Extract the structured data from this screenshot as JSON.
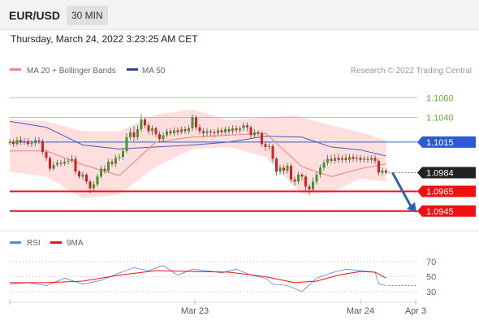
{
  "header": {
    "symbol": "EUR/USD",
    "timeframe": "30 MIN"
  },
  "datetime": "Thursday, March 24, 2022 3:23:25 AM CET",
  "legend": {
    "ma20": "MA 20 + Bollinger Bands",
    "ma50": "MA 50"
  },
  "copyright": "Research © 2022 Trading Central",
  "colors": {
    "bollinger": "#ffd6d6",
    "ma20": "#e8837e",
    "ma50": "#4a5fb5",
    "candle_up": "#3a9a2e",
    "candle_down": "#d81f1f",
    "resistance": "#8cc56a",
    "pivot": "#2d5bd8",
    "support": "#ee1111",
    "current": "#222222",
    "arrow": "#2a66ad",
    "rsi": "#5b86e5",
    "rsi_ma": "#ee1111"
  },
  "rsi_legend": {
    "rsi": "RSI",
    "ma": "9MA"
  },
  "chart_data": [
    {
      "type": "candlestick",
      "ylim": [
        1.093,
        1.108
      ],
      "levels": [
        {
          "label": "1.1060",
          "value": 1.106,
          "kind": "resistance"
        },
        {
          "label": "1.1040",
          "value": 1.104,
          "kind": "resistance"
        },
        {
          "label": "1.1015",
          "value": 1.1015,
          "kind": "pivot"
        },
        {
          "label": "1.0984",
          "value": 1.0984,
          "kind": "current"
        },
        {
          "label": "1.0965",
          "value": 1.0965,
          "kind": "support"
        },
        {
          "label": "1.0945",
          "value": 1.0945,
          "kind": "support"
        }
      ],
      "forecast": {
        "from": 1.0984,
        "to": 1.0945
      },
      "x_ticks": [
        "Mar 23",
        "Mar 24",
        "Apr 3"
      ],
      "candles": [
        [
          1.1014,
          1.1015,
          1.1018,
          1.1012
        ],
        [
          1.1015,
          1.1013,
          1.1018,
          1.101
        ],
        [
          1.1013,
          1.1017,
          1.102,
          1.1011
        ],
        [
          1.1017,
          1.1015,
          1.1021,
          1.1012
        ],
        [
          1.1015,
          1.1016,
          1.1019,
          1.1012
        ],
        [
          1.1016,
          1.1013,
          1.1019,
          1.101
        ],
        [
          1.1013,
          1.1014,
          1.1017,
          1.101
        ],
        [
          1.1014,
          1.1017,
          1.102,
          1.1011
        ],
        [
          1.1017,
          1.1016,
          1.102,
          1.1013
        ],
        [
          1.1016,
          1.1005,
          1.1018,
          1.1002
        ],
        [
          1.1005,
          1.0999,
          1.1007,
          1.0996
        ],
        [
          1.0999,
          1.0988,
          1.1001,
          1.0985
        ],
        [
          1.0988,
          1.0992,
          1.0995,
          1.0986
        ],
        [
          1.0992,
          1.0994,
          1.0997,
          1.099
        ],
        [
          1.0994,
          1.0993,
          1.0997,
          1.099
        ],
        [
          1.0993,
          1.0995,
          1.0998,
          1.0991
        ],
        [
          1.0995,
          1.0996,
          1.0999,
          1.0992
        ],
        [
          1.0996,
          1.0998,
          1.1002,
          1.0994
        ],
        [
          1.0998,
          1.0985,
          1.1001,
          1.0982
        ],
        [
          1.0985,
          1.098,
          1.0987,
          1.0978
        ],
        [
          1.098,
          1.0982,
          1.0985,
          1.0977
        ],
        [
          1.0982,
          1.0975,
          1.0984,
          1.0972
        ],
        [
          1.0975,
          1.0968,
          1.0977,
          1.0963
        ],
        [
          1.0968,
          1.0972,
          1.0975,
          1.0965
        ],
        [
          1.0972,
          1.098,
          1.0983,
          1.097
        ],
        [
          1.098,
          1.0988,
          1.0991,
          1.0978
        ],
        [
          1.0988,
          1.0986,
          1.0992,
          1.0983
        ],
        [
          1.0986,
          1.0995,
          1.0998,
          1.0984
        ],
        [
          1.0995,
          1.0993,
          1.0998,
          1.099
        ],
        [
          1.0993,
          1.0999,
          1.1002,
          1.099
        ],
        [
          1.0999,
          1.1,
          1.1003,
          1.0996
        ],
        [
          1.1,
          1.1006,
          1.1009,
          1.0997
        ],
        [
          1.1006,
          1.102,
          1.1024,
          1.1004
        ],
        [
          1.102,
          1.1025,
          1.1029,
          1.1017
        ],
        [
          1.1025,
          1.102,
          1.1031,
          1.1016
        ],
        [
          1.102,
          1.1028,
          1.1032,
          1.1017
        ],
        [
          1.1028,
          1.1038,
          1.1043,
          1.1025
        ],
        [
          1.1038,
          1.1032,
          1.104,
          1.1029
        ],
        [
          1.1032,
          1.1026,
          1.1035,
          1.1023
        ],
        [
          1.1026,
          1.1029,
          1.1032,
          1.1022
        ],
        [
          1.1029,
          1.1023,
          1.1031,
          1.102
        ],
        [
          1.1023,
          1.1018,
          1.1026,
          1.1015
        ],
        [
          1.1018,
          1.1022,
          1.1025,
          1.1015
        ],
        [
          1.1022,
          1.1026,
          1.1029,
          1.1019
        ],
        [
          1.1026,
          1.1024,
          1.1029,
          1.1021
        ],
        [
          1.1024,
          1.1027,
          1.103,
          1.1021
        ],
        [
          1.1027,
          1.1025,
          1.103,
          1.1022
        ],
        [
          1.1025,
          1.1028,
          1.1031,
          1.1023
        ],
        [
          1.1028,
          1.1026,
          1.1031,
          1.1023
        ],
        [
          1.1026,
          1.1029,
          1.1032,
          1.1023
        ],
        [
          1.1029,
          1.104,
          1.1043,
          1.1026
        ],
        [
          1.104,
          1.103,
          1.1042,
          1.1027
        ],
        [
          1.103,
          1.1026,
          1.1033,
          1.1023
        ],
        [
          1.1026,
          1.1024,
          1.1029,
          1.102
        ],
        [
          1.1024,
          1.1026,
          1.1029,
          1.1021
        ],
        [
          1.1026,
          1.1025,
          1.1028,
          1.1021
        ],
        [
          1.1025,
          1.1024,
          1.1028,
          1.102
        ],
        [
          1.1024,
          1.1027,
          1.103,
          1.1021
        ],
        [
          1.1027,
          1.1025,
          1.103,
          1.1022
        ],
        [
          1.1025,
          1.1028,
          1.1031,
          1.1022
        ],
        [
          1.1028,
          1.1026,
          1.1031,
          1.1023
        ],
        [
          1.1026,
          1.1029,
          1.1032,
          1.1023
        ],
        [
          1.1029,
          1.1027,
          1.1032,
          1.1024
        ],
        [
          1.1027,
          1.1029,
          1.1031,
          1.1024
        ],
        [
          1.1029,
          1.1032,
          1.1035,
          1.1026
        ],
        [
          1.1032,
          1.103,
          1.1035,
          1.1026
        ],
        [
          1.103,
          1.1022,
          1.1032,
          1.1019
        ],
        [
          1.1022,
          1.1025,
          1.1028,
          1.1019
        ],
        [
          1.1025,
          1.1024,
          1.1027,
          1.1021
        ],
        [
          1.1024,
          1.1013,
          1.1026,
          1.101
        ],
        [
          1.1013,
          1.101,
          1.1016,
          1.1006
        ],
        [
          1.101,
          1.1011,
          1.1014,
          1.1007
        ],
        [
          1.1011,
          1.0998,
          1.1013,
          1.0994
        ],
        [
          1.0998,
          1.0985,
          1.1,
          1.0981
        ],
        [
          1.0985,
          1.0989,
          1.0992,
          1.0982
        ],
        [
          1.0989,
          1.0986,
          1.0992,
          1.0982
        ],
        [
          1.0986,
          1.0991,
          1.0994,
          1.0983
        ],
        [
          1.0991,
          1.0977,
          1.0993,
          1.0974
        ],
        [
          1.0977,
          1.0975,
          1.098,
          1.0971
        ],
        [
          1.0975,
          1.0982,
          1.0985,
          1.0972
        ],
        [
          1.0982,
          1.098,
          1.0984,
          1.0976
        ],
        [
          1.098,
          1.097,
          1.0982,
          1.0966
        ],
        [
          1.097,
          1.0967,
          1.0973,
          1.0961
        ],
        [
          1.0967,
          1.0975,
          1.0979,
          1.0965
        ],
        [
          1.0975,
          1.0982,
          1.0985,
          1.0972
        ],
        [
          1.0982,
          1.0989,
          1.0992,
          1.0979
        ],
        [
          1.0989,
          1.0994,
          1.0997,
          1.0986
        ],
        [
          1.0994,
          1.0998,
          1.1002,
          1.0991
        ],
        [
          1.0998,
          1.0996,
          1.1002,
          1.0993
        ],
        [
          1.0996,
          1.0999,
          1.1003,
          1.0993
        ],
        [
          1.0999,
          1.0997,
          1.1003,
          1.0994
        ],
        [
          1.0997,
          1.0999,
          1.1002,
          1.0994
        ],
        [
          1.0999,
          1.0997,
          1.1003,
          1.0994
        ],
        [
          1.0997,
          1.1,
          1.1003,
          1.0994
        ],
        [
          1.1,
          1.0998,
          1.1003,
          1.0995
        ],
        [
          1.0998,
          1.0999,
          1.1002,
          1.0995
        ],
        [
          1.0999,
          1.0997,
          1.1002,
          1.0994
        ],
        [
          1.0997,
          1.0998,
          1.1001,
          1.0994
        ],
        [
          1.0998,
          1.0997,
          1.1001,
          1.0994
        ],
        [
          1.0997,
          1.0999,
          1.1002,
          1.0994
        ],
        [
          1.0999,
          1.0996,
          1.1002,
          1.0993
        ],
        [
          1.0996,
          1.0984,
          1.0998,
          1.0981
        ],
        [
          1.0984,
          1.0986,
          1.0989,
          1.0981
        ],
        [
          1.0986,
          1.0984,
          1.0988,
          1.0982
        ]
      ],
      "ma20": [
        [
          0,
          1.1006
        ],
        [
          10,
          1.1006
        ],
        [
          20,
          1.0992
        ],
        [
          30,
          1.0981
        ],
        [
          40,
          1.1015
        ],
        [
          50,
          1.102
        ],
        [
          60,
          1.1022
        ],
        [
          70,
          1.1024
        ],
        [
          80,
          1.099
        ],
        [
          88,
          1.098
        ],
        [
          96,
          1.0988
        ],
        [
          103,
          1.0993
        ]
      ],
      "ma50": [
        [
          0,
          1.1036
        ],
        [
          10,
          1.103
        ],
        [
          20,
          1.1012
        ],
        [
          30,
          1.1008
        ],
        [
          40,
          1.101
        ],
        [
          50,
          1.1012
        ],
        [
          60,
          1.1015
        ],
        [
          70,
          1.1021
        ],
        [
          80,
          1.102
        ],
        [
          88,
          1.101
        ],
        [
          96,
          1.1007
        ],
        [
          103,
          1.1001
        ]
      ],
      "bb_upper": [
        [
          0,
          1.1038
        ],
        [
          10,
          1.1036
        ],
        [
          20,
          1.1026
        ],
        [
          30,
          1.1026
        ],
        [
          40,
          1.1043
        ],
        [
          50,
          1.1048
        ],
        [
          60,
          1.1037
        ],
        [
          70,
          1.104
        ],
        [
          78,
          1.1042
        ],
        [
          88,
          1.1032
        ],
        [
          96,
          1.1025
        ],
        [
          103,
          1.1017
        ]
      ],
      "bb_lower": [
        [
          0,
          1.0985
        ],
        [
          10,
          1.098
        ],
        [
          20,
          1.0958
        ],
        [
          30,
          1.0962
        ],
        [
          40,
          1.099
        ],
        [
          50,
          1.1008
        ],
        [
          60,
          1.101
        ],
        [
          70,
          1.1
        ],
        [
          80,
          1.0962
        ],
        [
          88,
          1.0964
        ],
        [
          96,
          1.0978
        ],
        [
          103,
          1.0975
        ]
      ]
    },
    {
      "type": "line",
      "y_ticks": [
        "70",
        "50",
        "30"
      ],
      "ylim": [
        20,
        80
      ],
      "rsi": [
        [
          0,
          40
        ],
        [
          5,
          42
        ],
        [
          10,
          38
        ],
        [
          15,
          48
        ],
        [
          20,
          40
        ],
        [
          25,
          45
        ],
        [
          30,
          55
        ],
        [
          34,
          62
        ],
        [
          38,
          58
        ],
        [
          42,
          65
        ],
        [
          46,
          52
        ],
        [
          50,
          60
        ],
        [
          54,
          58
        ],
        [
          58,
          55
        ],
        [
          62,
          60
        ],
        [
          66,
          52
        ],
        [
          70,
          48
        ],
        [
          72,
          40
        ],
        [
          76,
          38
        ],
        [
          80,
          30
        ],
        [
          84,
          48
        ],
        [
          88,
          55
        ],
        [
          92,
          60
        ],
        [
          96,
          58
        ],
        [
          100,
          56
        ],
        [
          101,
          40
        ],
        [
          103,
          38
        ]
      ],
      "rsi_ma": [
        [
          0,
          42
        ],
        [
          10,
          42
        ],
        [
          20,
          44
        ],
        [
          30,
          52
        ],
        [
          40,
          58
        ],
        [
          50,
          57
        ],
        [
          60,
          56
        ],
        [
          70,
          50
        ],
        [
          78,
          42
        ],
        [
          84,
          44
        ],
        [
          90,
          52
        ],
        [
          96,
          57
        ],
        [
          100,
          56
        ],
        [
          103,
          48
        ]
      ]
    }
  ]
}
